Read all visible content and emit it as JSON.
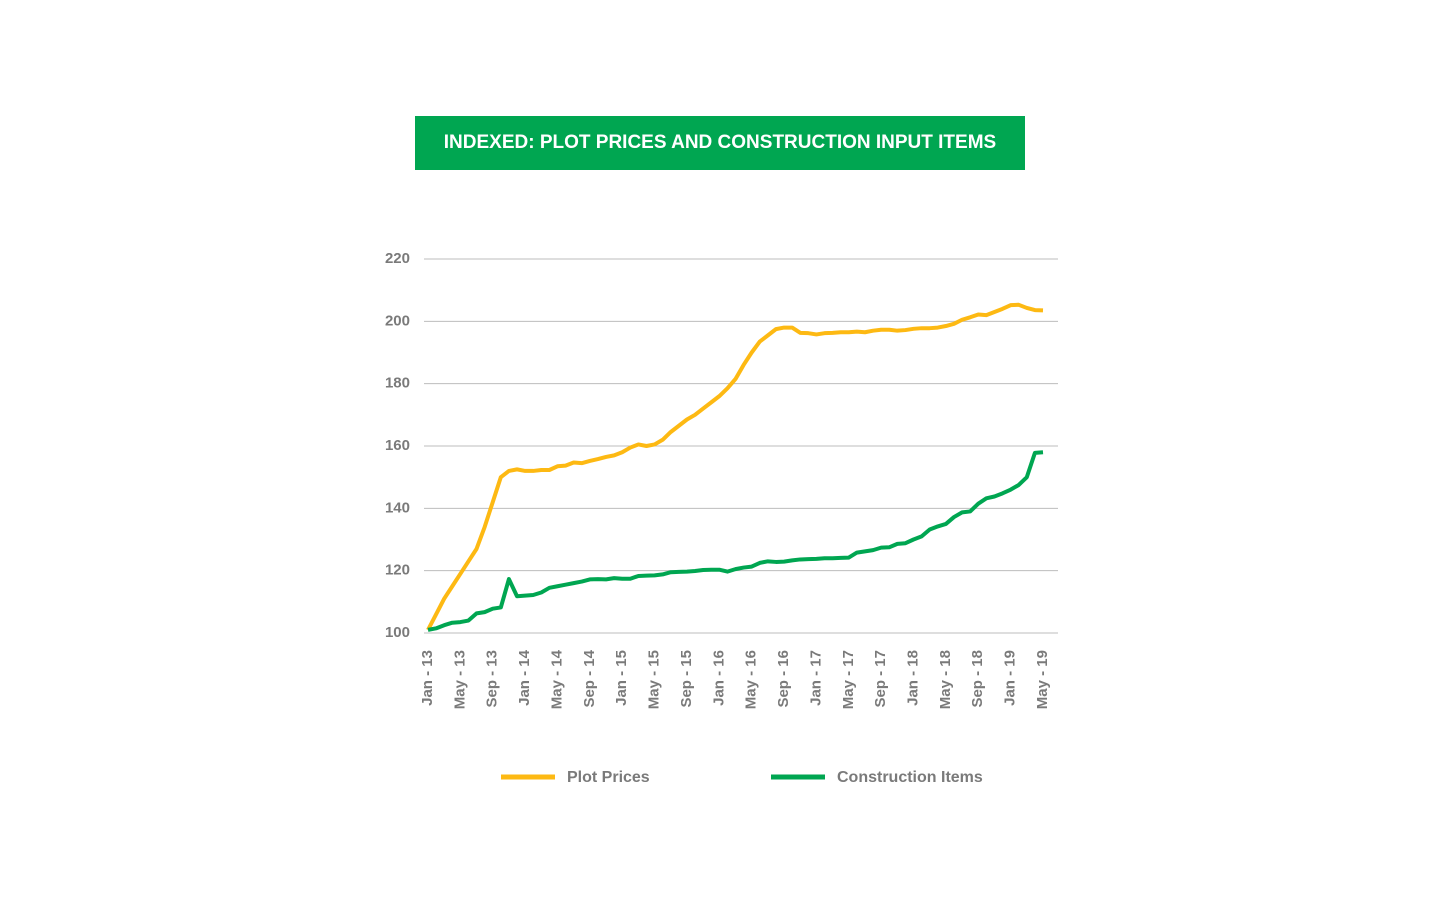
{
  "chart_data": {
    "type": "line",
    "title": "INDEXED: PLOT PRICES AND CONSTRUCTION INPUT ITEMS",
    "categories": [
      "Jan - 13",
      null,
      null,
      null,
      "May - 13",
      null,
      null,
      null,
      "Sep - 13",
      null,
      null,
      null,
      "Jan - 14",
      null,
      null,
      null,
      "May - 14",
      null,
      null,
      null,
      "Sep - 14",
      null,
      null,
      null,
      "Jan - 15",
      null,
      null,
      null,
      "May - 15",
      null,
      null,
      null,
      "Sep - 15",
      null,
      null,
      null,
      "Jan - 16",
      null,
      null,
      null,
      "May - 16",
      null,
      null,
      null,
      "Sep - 16",
      null,
      null,
      null,
      "Jan - 17",
      null,
      null,
      null,
      "May - 17",
      null,
      null,
      null,
      "Sep - 17",
      null,
      null,
      null,
      "Jan - 18",
      null,
      null,
      null,
      "May - 18",
      null,
      null,
      null,
      "Sep - 18",
      null,
      null,
      null,
      "Jan - 19",
      null,
      null,
      null,
      "May - 19"
    ],
    "series": [
      {
        "name": "Plot Prices",
        "color": "#fdb913",
        "values": [
          101,
          106,
          111,
          115,
          119,
          123,
          127,
          134,
          142,
          150,
          152,
          152.5,
          152,
          152,
          152.3,
          152.3,
          153.5,
          153.7,
          154.7,
          154.5,
          155.2,
          155.8,
          156.5,
          157,
          158,
          159.5,
          160.5,
          160,
          160.5,
          162,
          164.5,
          166.5,
          168.5,
          170,
          172,
          174,
          176,
          178.5,
          181.5,
          186,
          190,
          193.5,
          195.5,
          197.5,
          198,
          198,
          196.3,
          196.2,
          195.8,
          196.2,
          196.3,
          196.5,
          196.5,
          196.7,
          196.5,
          197,
          197.3,
          197.3,
          197,
          197.2,
          197.6,
          197.8,
          197.8,
          198,
          198.5,
          199.2,
          200.5,
          201.3,
          202.2,
          202,
          203,
          204,
          205.2,
          205.3,
          204.3,
          203.6,
          203.5
        ]
      },
      {
        "name": "Construction Items",
        "color": "#00a651",
        "values": [
          101,
          101.5,
          102.5,
          103.3,
          103.5,
          104,
          106.3,
          106.7,
          107.8,
          108.2,
          117.3,
          111.8,
          112,
          112.2,
          113,
          114.5,
          115,
          115.5,
          116,
          116.5,
          117.2,
          117.3,
          117.2,
          117.6,
          117.4,
          117.4,
          118.3,
          118.4,
          118.5,
          118.8,
          119.5,
          119.6,
          119.7,
          119.9,
          120.2,
          120.3,
          120.3,
          119.7,
          120.5,
          121,
          121.3,
          122.5,
          123,
          122.8,
          122.9,
          123.3,
          123.6,
          123.7,
          123.8,
          124,
          124,
          124.1,
          124.2,
          125.8,
          126.2,
          126.6,
          127.4,
          127.5,
          128.6,
          128.8,
          130,
          131,
          133.2,
          134.2,
          135,
          137.2,
          138.7,
          139,
          141.5,
          143.2,
          143.8,
          144.8,
          146,
          147.5,
          150,
          157.8,
          158
        ]
      }
    ],
    "ylim": [
      100,
      220
    ],
    "yticks": [
      100,
      120,
      140,
      160,
      180,
      200,
      220
    ],
    "grid": true
  }
}
